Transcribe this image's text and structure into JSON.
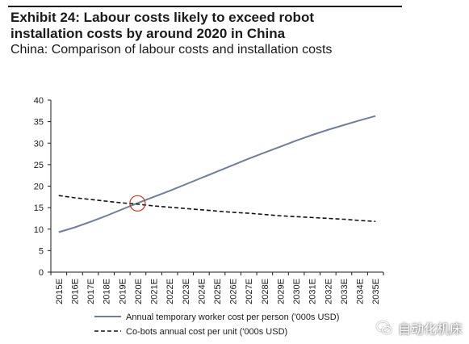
{
  "header": {
    "title_line1": "Exhibit 24: Labour costs likely to exceed robot",
    "title_line2": "installation costs by around 2020 in China",
    "subtitle": "China: Comparison of labour costs and installation costs"
  },
  "watermark": {
    "text": "自动化机床",
    "icon": "wechat-icon"
  },
  "chart_data": {
    "type": "line",
    "title": "",
    "xlabel": "",
    "ylabel": "",
    "ylim": [
      0,
      40
    ],
    "yticks": [
      0,
      5,
      10,
      15,
      20,
      25,
      30,
      35,
      40
    ],
    "grid": false,
    "legend_position": "bottom",
    "categories": [
      "2015E",
      "2016E",
      "2017E",
      "2018E",
      "2019E",
      "2020E",
      "2021E",
      "2022E",
      "2023E",
      "2024E",
      "2025E",
      "2026E",
      "2027E",
      "2028E",
      "2029E",
      "2030E",
      "2031E",
      "2032E",
      "2033E",
      "2034E",
      "2035E"
    ],
    "series": [
      {
        "name": "Annual temporary worker cost per person ('000s USD)",
        "style": "solid",
        "color": "#6e7f96",
        "values": [
          9.3,
          10.4,
          11.7,
          13.1,
          14.6,
          16.1,
          17.5,
          18.9,
          20.4,
          21.9,
          23.4,
          24.9,
          26.4,
          27.8,
          29.2,
          30.6,
          31.9,
          33.1,
          34.2,
          35.3,
          36.3
        ]
      },
      {
        "name": "Co-bots annual cost per unit ('000s USD)",
        "style": "dashed",
        "color": "#111111",
        "values": [
          17.8,
          17.3,
          16.9,
          16.5,
          16.1,
          15.8,
          15.4,
          15.1,
          14.8,
          14.5,
          14.2,
          13.9,
          13.7,
          13.4,
          13.1,
          12.9,
          12.7,
          12.5,
          12.3,
          12.0,
          11.8
        ]
      }
    ],
    "annotations": [
      {
        "type": "circle",
        "category": "2020E",
        "value": 16.0,
        "color": "#c0392b"
      }
    ]
  }
}
